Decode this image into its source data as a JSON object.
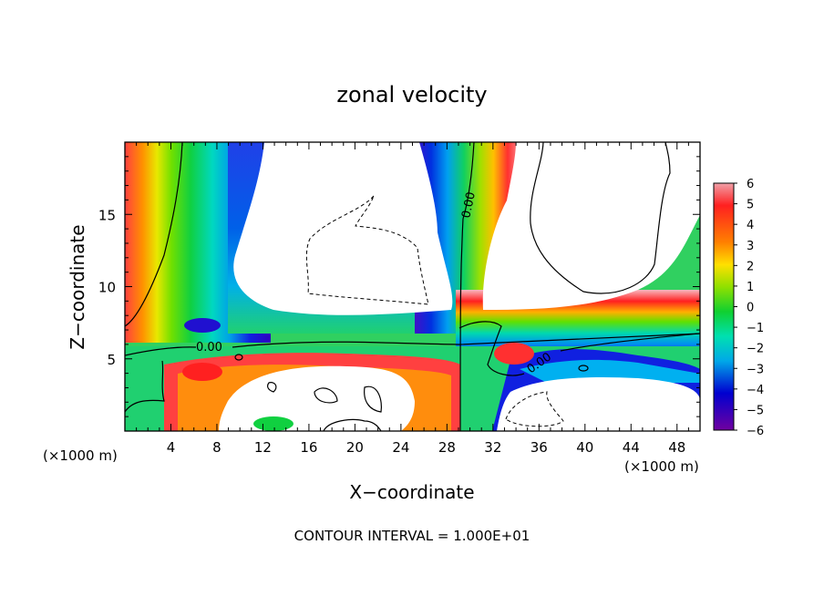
{
  "chart_data": {
    "type": "heatmap",
    "title": "zonal velocity",
    "xlabel": "X−coordinate",
    "ylabel": "Z−coordinate",
    "x_unit_label": "(×1000 m)",
    "footer": "CONTOUR INTERVAL = 1.000E+01",
    "xlim": [
      0,
      50
    ],
    "ylim": [
      0,
      20
    ],
    "x_ticks": [
      4,
      8,
      12,
      16,
      20,
      24,
      28,
      32,
      36,
      40,
      44,
      48
    ],
    "y_ticks": [
      5,
      10,
      15
    ],
    "contour_labels": [
      {
        "text": "0.00",
        "x": 29.8,
        "z": 15.7,
        "angle": -78
      },
      {
        "text": "0.00",
        "x": 7.7,
        "z": 5.8,
        "angle": 0
      },
      {
        "text": "0.00",
        "x": 36.0,
        "z": 5.2,
        "angle": -35
      }
    ],
    "colorbar": {
      "ticks": [
        "6",
        "5",
        "4",
        "3",
        "2",
        "1",
        "0",
        "−1",
        "−2",
        "−3",
        "−4",
        "−5",
        "−6"
      ],
      "range": [
        -6,
        6
      ],
      "colors": [
        "#f0a0a8",
        "#ff0000",
        "#ff7000",
        "#ffe000",
        "#80e000",
        "#10d030",
        "#00e0c0",
        "#00a0e8",
        "#0000d0",
        "#7000a0"
      ]
    }
  }
}
